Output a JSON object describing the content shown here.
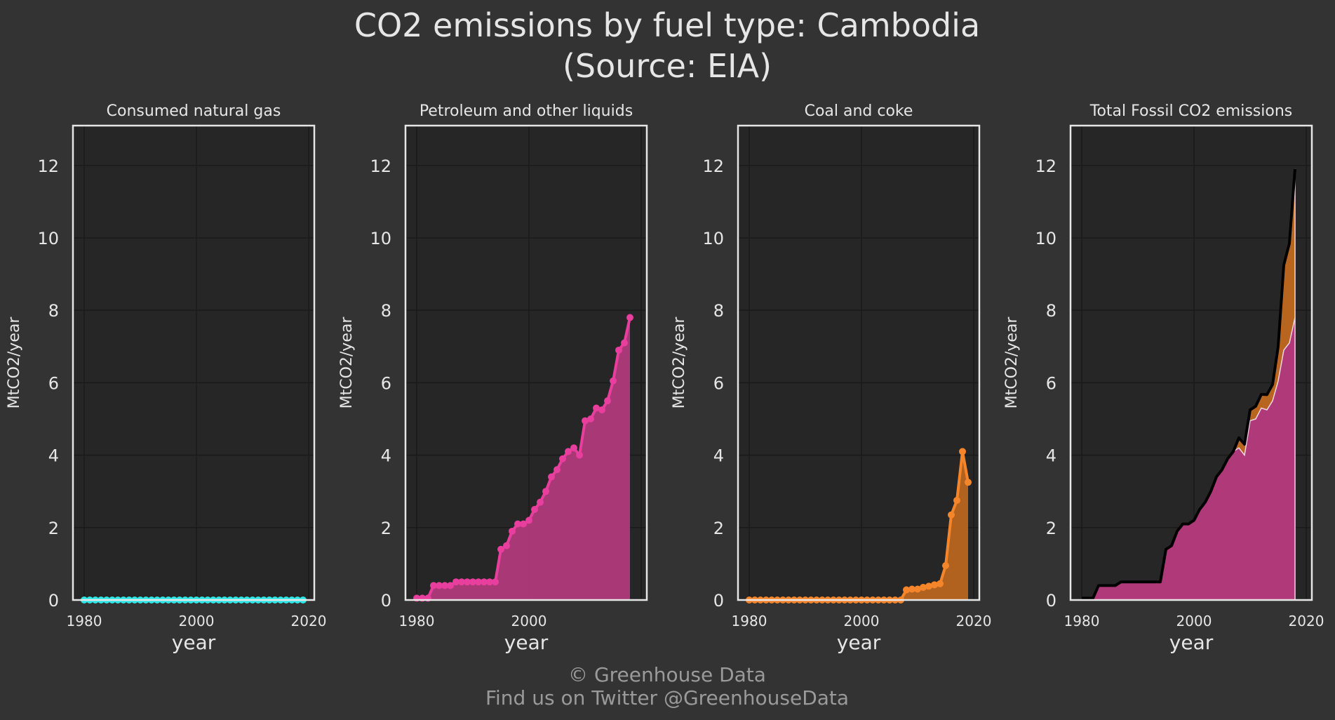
{
  "title": "CO2 emissions by fuel type: Cambodia",
  "subtitle": "(Source: EIA)",
  "footer": {
    "copyright": "© Greenhouse Data",
    "twitter": "Find us on Twitter @GreenhouseData"
  },
  "colors": {
    "background": "#333333",
    "plot_background": "#262626",
    "grid": "#1a1a1a",
    "frame": "#e6e6e6",
    "natural_gas": "#2ee6e6",
    "petroleum": "#e83e9e",
    "petroleum_fill": "#b0397a",
    "coal": "#f5852a",
    "coal_fill": "#b8651f",
    "total_line": "#000000"
  },
  "chart_data": [
    {
      "type": "line",
      "title": "Consumed natural gas",
      "xlabel": "year",
      "ylabel": "MtCO2/year",
      "xlim": [
        1978,
        2021
      ],
      "ylim": [
        0,
        13.1
      ],
      "xticks": [
        1980,
        2000,
        2020
      ],
      "yticks": [
        0,
        2,
        4,
        6,
        8,
        10,
        12
      ],
      "grid": true,
      "series": [
        {
          "x": [
            1980,
            1981,
            1982,
            1983,
            1984,
            1985,
            1986,
            1987,
            1988,
            1989,
            1990,
            1991,
            1992,
            1993,
            1994,
            1995,
            1996,
            1997,
            1998,
            1999,
            2000,
            2001,
            2002,
            2003,
            2004,
            2005,
            2006,
            2007,
            2008,
            2009,
            2010,
            2011,
            2012,
            2013,
            2014,
            2015,
            2016,
            2017,
            2018,
            2019
          ],
          "values": [
            0,
            0,
            0,
            0,
            0,
            0,
            0,
            0,
            0,
            0,
            0,
            0,
            0,
            0,
            0,
            0,
            0,
            0,
            0,
            0,
            0,
            0,
            0,
            0,
            0,
            0,
            0,
            0,
            0,
            0,
            0,
            0,
            0,
            0,
            0,
            0,
            0,
            0,
            0,
            0
          ]
        }
      ]
    },
    {
      "type": "area",
      "title": "Petroleum and other liquids",
      "xlabel": "year",
      "ylabel": "MtCO2/year",
      "xlim": [
        1978,
        2021
      ],
      "ylim": [
        0,
        13.1
      ],
      "xticks": [
        1980,
        2000
      ],
      "yticks": [
        0,
        2,
        4,
        6,
        8,
        10,
        12
      ],
      "grid": true,
      "series": [
        {
          "x": [
            1980,
            1981,
            1982,
            1983,
            1984,
            1985,
            1986,
            1987,
            1988,
            1989,
            1990,
            1991,
            1992,
            1993,
            1994,
            1995,
            1996,
            1997,
            1998,
            1999,
            2000,
            2001,
            2002,
            2003,
            2004,
            2005,
            2006,
            2007,
            2008,
            2009,
            2010,
            2011,
            2012,
            2013,
            2014,
            2015,
            2016,
            2017,
            2018
          ],
          "values": [
            0.05,
            0.05,
            0.05,
            0.4,
            0.4,
            0.4,
            0.4,
            0.5,
            0.5,
            0.5,
            0.5,
            0.5,
            0.5,
            0.5,
            0.5,
            1.4,
            1.5,
            1.9,
            2.1,
            2.1,
            2.2,
            2.5,
            2.7,
            3.0,
            3.4,
            3.6,
            3.9,
            4.1,
            4.2,
            4.0,
            4.95,
            5.0,
            5.3,
            5.25,
            5.5,
            6.05,
            6.9,
            7.1,
            7.8
          ]
        }
      ]
    },
    {
      "type": "area",
      "title": "Coal and coke",
      "xlabel": "year",
      "ylabel": "MtCO2/year",
      "xlim": [
        1978,
        2021
      ],
      "ylim": [
        0,
        13.1
      ],
      "xticks": [
        1980,
        2000,
        2020
      ],
      "yticks": [
        0,
        2,
        4,
        6,
        8,
        10,
        12
      ],
      "grid": true,
      "series": [
        {
          "x": [
            1980,
            1981,
            1982,
            1983,
            1984,
            1985,
            1986,
            1987,
            1988,
            1989,
            1990,
            1991,
            1992,
            1993,
            1994,
            1995,
            1996,
            1997,
            1998,
            1999,
            2000,
            2001,
            2002,
            2003,
            2004,
            2005,
            2006,
            2007,
            2008,
            2009,
            2010,
            2011,
            2012,
            2013,
            2014,
            2015,
            2016,
            2017,
            2018,
            2019
          ],
          "values": [
            0,
            0,
            0,
            0,
            0,
            0,
            0,
            0,
            0,
            0,
            0,
            0,
            0,
            0,
            0,
            0,
            0,
            0,
            0,
            0,
            0,
            0,
            0,
            0,
            0,
            0,
            0,
            0,
            0.28,
            0.3,
            0.3,
            0.35,
            0.38,
            0.42,
            0.45,
            0.95,
            2.35,
            2.75,
            4.1,
            3.25
          ]
        }
      ]
    },
    {
      "type": "area",
      "title": "Total Fossil CO2 emissions",
      "xlabel": "year",
      "ylabel": "MtCO2/year",
      "xlim": [
        1978,
        2021
      ],
      "ylim": [
        0,
        13.1
      ],
      "xticks": [
        1980,
        2000,
        2020
      ],
      "yticks": [
        0,
        2,
        4,
        6,
        8,
        10,
        12
      ],
      "grid": true,
      "stacked": true,
      "x": [
        1980,
        1981,
        1982,
        1983,
        1984,
        1985,
        1986,
        1987,
        1988,
        1989,
        1990,
        1991,
        1992,
        1993,
        1994,
        1995,
        1996,
        1997,
        1998,
        1999,
        2000,
        2001,
        2002,
        2003,
        2004,
        2005,
        2006,
        2007,
        2008,
        2009,
        2010,
        2011,
        2012,
        2013,
        2014,
        2015,
        2016,
        2017,
        2018
      ],
      "series": [
        {
          "values": [
            0.05,
            0.05,
            0.05,
            0.4,
            0.4,
            0.4,
            0.4,
            0.5,
            0.5,
            0.5,
            0.5,
            0.5,
            0.5,
            0.5,
            0.5,
            1.4,
            1.5,
            1.9,
            2.1,
            2.1,
            2.2,
            2.5,
            2.7,
            3.0,
            3.4,
            3.6,
            3.9,
            4.1,
            4.2,
            4.0,
            4.95,
            5.0,
            5.3,
            5.25,
            5.5,
            6.05,
            6.9,
            7.1,
            7.8
          ]
        },
        {
          "values": [
            0,
            0,
            0,
            0,
            0,
            0,
            0,
            0,
            0,
            0,
            0,
            0,
            0,
            0,
            0,
            0,
            0,
            0,
            0,
            0,
            0,
            0,
            0,
            0,
            0,
            0,
            0,
            0,
            0.28,
            0.3,
            0.3,
            0.35,
            0.38,
            0.42,
            0.45,
            0.95,
            2.35,
            2.75,
            4.1
          ]
        }
      ],
      "total": [
        0.05,
        0.05,
        0.05,
        0.4,
        0.4,
        0.4,
        0.4,
        0.5,
        0.5,
        0.5,
        0.5,
        0.5,
        0.5,
        0.5,
        0.5,
        1.4,
        1.5,
        1.9,
        2.1,
        2.1,
        2.2,
        2.5,
        2.7,
        3.0,
        3.4,
        3.6,
        3.9,
        4.1,
        4.48,
        4.3,
        5.25,
        5.35,
        5.68,
        5.67,
        5.95,
        7.0,
        9.25,
        9.85,
        11.9
      ]
    }
  ]
}
